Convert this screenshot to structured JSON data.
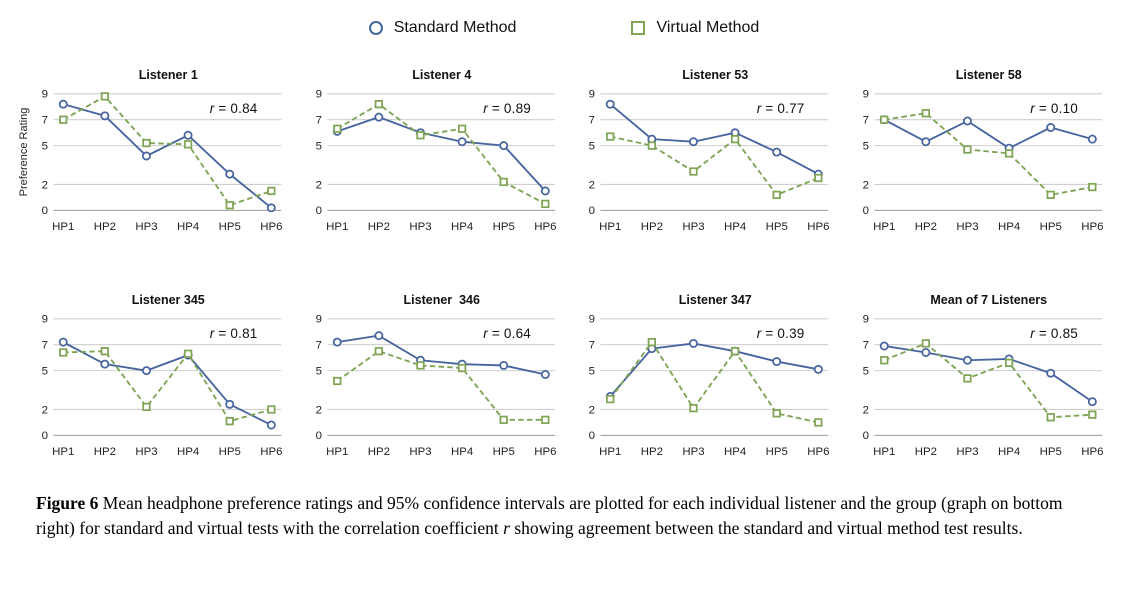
{
  "legend": {
    "items": [
      {
        "label": "Standard Method",
        "marker": "circle",
        "color": "#46649e"
      },
      {
        "label": "Virtual Method",
        "marker": "square",
        "color": "#7fa454"
      }
    ]
  },
  "chart_data": {
    "type": "line",
    "categories": [
      "HP1",
      "HP2",
      "HP3",
      "HP4",
      "HP5",
      "HP6"
    ],
    "ylim": [
      0,
      9
    ],
    "yticks": [
      0,
      2,
      5,
      7,
      9
    ],
    "ylabel": "Preference Rating",
    "grid": "horizontal",
    "legend_position": "top-center",
    "colors": [
      "#46649e",
      "#7fa454"
    ],
    "series_names": [
      "Standard Method",
      "Virtual Method"
    ],
    "charts": [
      {
        "title": "Listener 1",
        "r_symbol": "r",
        "r_value": " = 0.84",
        "series": [
          {
            "name": "Standard Method",
            "values": [
              8.2,
              7.3,
              4.2,
              5.8,
              2.8,
              0.2
            ]
          },
          {
            "name": "Virtual Method",
            "values": [
              7.0,
              8.8,
              5.2,
              5.1,
              0.4,
              1.5
            ]
          }
        ]
      },
      {
        "title": "Listener 4",
        "r_symbol": "r",
        "r_value": " = 0.89",
        "series": [
          {
            "name": "Standard Method",
            "values": [
              6.1,
              7.2,
              6.0,
              5.3,
              5.0,
              1.5
            ]
          },
          {
            "name": "Virtual Method",
            "values": [
              6.3,
              8.2,
              5.8,
              6.3,
              2.2,
              0.5
            ]
          }
        ]
      },
      {
        "title": "Listener 53",
        "r_symbol": "r",
        "r_value": " = 0.77",
        "series": [
          {
            "name": "Standard Method",
            "values": [
              8.2,
              5.5,
              5.3,
              6.0,
              4.5,
              2.8
            ]
          },
          {
            "name": "Virtual Method",
            "values": [
              5.7,
              5.0,
              3.0,
              5.5,
              1.2,
              2.5
            ]
          }
        ]
      },
      {
        "title": "Listener 58",
        "r_symbol": "r",
        "r_value": " = 0.10",
        "series": [
          {
            "name": "Standard Method",
            "values": [
              7.0,
              5.3,
              6.9,
              4.8,
              6.4,
              5.5
            ]
          },
          {
            "name": "Virtual Method",
            "values": [
              7.0,
              7.5,
              4.7,
              4.4,
              1.2,
              1.8
            ]
          }
        ]
      },
      {
        "title": "Listener 345",
        "r_symbol": "r",
        "r_value": " = 0.81",
        "series": [
          {
            "name": "Standard Method",
            "values": [
              7.2,
              5.5,
              5.0,
              6.2,
              2.4,
              0.8
            ]
          },
          {
            "name": "Virtual Method",
            "values": [
              6.4,
              6.5,
              2.2,
              6.3,
              1.1,
              2.0
            ]
          }
        ]
      },
      {
        "title": "Listener  346",
        "r_symbol": "r",
        "r_value": " = 0.64",
        "series": [
          {
            "name": "Standard Method",
            "values": [
              7.2,
              7.7,
              5.8,
              5.5,
              5.4,
              4.7
            ]
          },
          {
            "name": "Virtual Method",
            "values": [
              4.2,
              6.5,
              5.4,
              5.2,
              1.2,
              1.2
            ]
          }
        ]
      },
      {
        "title": "Listener 347",
        "r_symbol": "r",
        "r_value": " = 0.39",
        "series": [
          {
            "name": "Standard Method",
            "values": [
              3.0,
              6.7,
              7.1,
              6.5,
              5.7,
              5.1
            ]
          },
          {
            "name": "Virtual Method",
            "values": [
              2.8,
              7.2,
              2.1,
              6.5,
              1.7,
              1.0
            ]
          }
        ]
      },
      {
        "title": "Mean of 7 Listeners",
        "r_symbol": "r",
        "r_value": " = 0.85",
        "series": [
          {
            "name": "Standard Method",
            "values": [
              6.9,
              6.4,
              5.8,
              5.9,
              4.8,
              2.6
            ]
          },
          {
            "name": "Virtual Method",
            "values": [
              5.8,
              7.1,
              4.4,
              5.6,
              1.4,
              1.6
            ]
          }
        ]
      }
    ]
  },
  "caption": {
    "label": "Figure 6",
    "text1": " Mean headphone preference ratings and 95% confidence intervals are plotted for each individual listener and the group (graph on bottom right) for standard and virtual tests with the correlation coefficient ",
    "italic": "r",
    "text2": " showing agreement between the standard and virtual method test results."
  }
}
